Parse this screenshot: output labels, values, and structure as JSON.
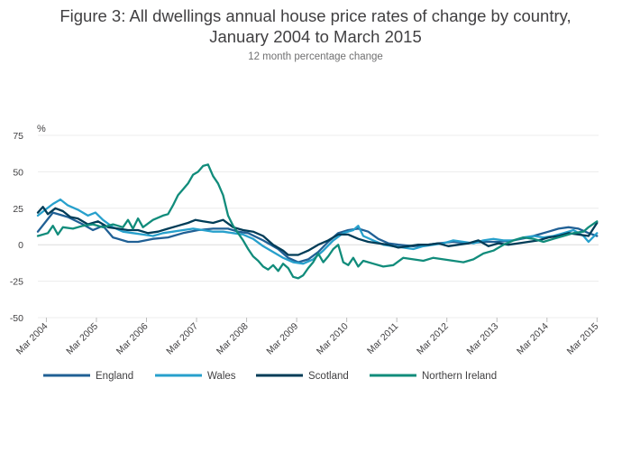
{
  "chart_data": {
    "type": "line",
    "title_line1": "Figure 3: All dwellings annual house price rates of change by country,",
    "title_line2": "January 2004 to March 2015",
    "subtitle": "12 month percentage change",
    "ylabel": "%",
    "ylim": [
      -50,
      75
    ],
    "yticks": [
      75,
      50,
      25,
      0,
      -25,
      -50
    ],
    "xlim": [
      2004.0,
      2015.2
    ],
    "xticks": [
      {
        "x": 2004.17,
        "label": "Mar 2004"
      },
      {
        "x": 2005.17,
        "label": "Mar 2005"
      },
      {
        "x": 2006.17,
        "label": "Mar 2006"
      },
      {
        "x": 2007.17,
        "label": "Mar 2007"
      },
      {
        "x": 2008.17,
        "label": "Mar 2008"
      },
      {
        "x": 2009.17,
        "label": "Mar 2009"
      },
      {
        "x": 2010.17,
        "label": "Mar 2010"
      },
      {
        "x": 2011.17,
        "label": "Mar 2011"
      },
      {
        "x": 2012.17,
        "label": "Mar 2012"
      },
      {
        "x": 2013.17,
        "label": "Mar 2013"
      },
      {
        "x": 2014.17,
        "label": "Mar 2014"
      },
      {
        "x": 2015.17,
        "label": "Mar 2015"
      }
    ],
    "grid": "horizontal",
    "legend_position": "bottom",
    "series": [
      {
        "name": "England",
        "color": "#206095",
        "points": [
          [
            2004.0,
            9
          ],
          [
            2004.3,
            22
          ],
          [
            2004.6,
            19
          ],
          [
            2004.9,
            14
          ],
          [
            2005.1,
            10
          ],
          [
            2005.3,
            13
          ],
          [
            2005.5,
            5
          ],
          [
            2005.8,
            2
          ],
          [
            2006.0,
            2
          ],
          [
            2006.3,
            4
          ],
          [
            2006.6,
            5
          ],
          [
            2006.9,
            8
          ],
          [
            2007.2,
            10
          ],
          [
            2007.5,
            11
          ],
          [
            2007.8,
            11
          ],
          [
            2008.0,
            9
          ],
          [
            2008.2,
            8
          ],
          [
            2008.5,
            3
          ],
          [
            2008.8,
            -3
          ],
          [
            2009.0,
            -9
          ],
          [
            2009.2,
            -12
          ],
          [
            2009.4,
            -10
          ],
          [
            2009.6,
            -5
          ],
          [
            2009.8,
            2
          ],
          [
            2010.0,
            8
          ],
          [
            2010.2,
            10
          ],
          [
            2010.4,
            11
          ],
          [
            2010.6,
            9
          ],
          [
            2010.8,
            4
          ],
          [
            2011.0,
            1
          ],
          [
            2011.2,
            0
          ],
          [
            2011.5,
            -1
          ],
          [
            2011.8,
            0
          ],
          [
            2012.0,
            1
          ],
          [
            2012.3,
            2
          ],
          [
            2012.6,
            1
          ],
          [
            2012.9,
            2
          ],
          [
            2013.2,
            2
          ],
          [
            2013.5,
            3
          ],
          [
            2013.8,
            5
          ],
          [
            2014.0,
            7
          ],
          [
            2014.2,
            9
          ],
          [
            2014.4,
            11
          ],
          [
            2014.6,
            12
          ],
          [
            2014.8,
            11
          ],
          [
            2015.0,
            8
          ],
          [
            2015.17,
            6
          ]
        ]
      },
      {
        "name": "Wales",
        "color": "#27a0cc",
        "points": [
          [
            2004.0,
            20
          ],
          [
            2004.15,
            24
          ],
          [
            2004.3,
            28
          ],
          [
            2004.45,
            31
          ],
          [
            2004.6,
            27
          ],
          [
            2004.8,
            24
          ],
          [
            2005.0,
            20
          ],
          [
            2005.15,
            22
          ],
          [
            2005.3,
            17
          ],
          [
            2005.5,
            12
          ],
          [
            2005.7,
            9
          ],
          [
            2005.9,
            8
          ],
          [
            2006.1,
            7
          ],
          [
            2006.3,
            6
          ],
          [
            2006.5,
            8
          ],
          [
            2006.7,
            9
          ],
          [
            2006.9,
            10
          ],
          [
            2007.1,
            11
          ],
          [
            2007.3,
            10
          ],
          [
            2007.5,
            9
          ],
          [
            2007.7,
            9
          ],
          [
            2007.9,
            8
          ],
          [
            2008.1,
            7
          ],
          [
            2008.3,
            4
          ],
          [
            2008.5,
            -1
          ],
          [
            2008.7,
            -5
          ],
          [
            2008.9,
            -9
          ],
          [
            2009.1,
            -12
          ],
          [
            2009.3,
            -13
          ],
          [
            2009.5,
            -10
          ],
          [
            2009.7,
            -4
          ],
          [
            2009.9,
            3
          ],
          [
            2010.1,
            8
          ],
          [
            2010.3,
            10
          ],
          [
            2010.4,
            13
          ],
          [
            2010.5,
            6
          ],
          [
            2010.7,
            3
          ],
          [
            2010.9,
            0
          ],
          [
            2011.1,
            -1
          ],
          [
            2011.3,
            -2
          ],
          [
            2011.5,
            -3
          ],
          [
            2011.7,
            -1
          ],
          [
            2011.9,
            0
          ],
          [
            2012.1,
            1
          ],
          [
            2012.3,
            3
          ],
          [
            2012.5,
            2
          ],
          [
            2012.7,
            1
          ],
          [
            2012.9,
            3
          ],
          [
            2013.1,
            4
          ],
          [
            2013.3,
            3
          ],
          [
            2013.5,
            3
          ],
          [
            2013.7,
            5
          ],
          [
            2013.9,
            6
          ],
          [
            2014.1,
            5
          ],
          [
            2014.3,
            6
          ],
          [
            2014.5,
            8
          ],
          [
            2014.7,
            10
          ],
          [
            2014.9,
            6
          ],
          [
            2015.0,
            2
          ],
          [
            2015.17,
            8
          ]
        ]
      },
      {
        "name": "Scotland",
        "color": "#003c57",
        "points": [
          [
            2004.0,
            22
          ],
          [
            2004.1,
            26
          ],
          [
            2004.2,
            21
          ],
          [
            2004.35,
            25
          ],
          [
            2004.5,
            23
          ],
          [
            2004.65,
            19
          ],
          [
            2004.8,
            18
          ],
          [
            2005.0,
            14
          ],
          [
            2005.2,
            16
          ],
          [
            2005.4,
            12
          ],
          [
            2005.6,
            11
          ],
          [
            2005.8,
            10
          ],
          [
            2006.0,
            10
          ],
          [
            2006.2,
            8
          ],
          [
            2006.4,
            9
          ],
          [
            2006.6,
            11
          ],
          [
            2006.8,
            13
          ],
          [
            2007.0,
            15
          ],
          [
            2007.15,
            17
          ],
          [
            2007.3,
            16
          ],
          [
            2007.5,
            15
          ],
          [
            2007.7,
            17
          ],
          [
            2007.9,
            12
          ],
          [
            2008.1,
            10
          ],
          [
            2008.3,
            9
          ],
          [
            2008.5,
            6
          ],
          [
            2008.7,
            0
          ],
          [
            2008.9,
            -4
          ],
          [
            2009.0,
            -7
          ],
          [
            2009.2,
            -7
          ],
          [
            2009.4,
            -4
          ],
          [
            2009.6,
            0
          ],
          [
            2009.8,
            3
          ],
          [
            2010.0,
            7
          ],
          [
            2010.2,
            7
          ],
          [
            2010.4,
            4
          ],
          [
            2010.6,
            2
          ],
          [
            2010.8,
            1
          ],
          [
            2011.0,
            0
          ],
          [
            2011.2,
            -2
          ],
          [
            2011.4,
            -1
          ],
          [
            2011.6,
            0
          ],
          [
            2011.8,
            0
          ],
          [
            2012.0,
            1
          ],
          [
            2012.2,
            -1
          ],
          [
            2012.4,
            0
          ],
          [
            2012.6,
            1
          ],
          [
            2012.8,
            3
          ],
          [
            2013.0,
            -1
          ],
          [
            2013.2,
            1
          ],
          [
            2013.4,
            0
          ],
          [
            2013.6,
            1
          ],
          [
            2013.8,
            2
          ],
          [
            2014.0,
            3
          ],
          [
            2014.2,
            5
          ],
          [
            2014.4,
            6
          ],
          [
            2014.6,
            8
          ],
          [
            2014.8,
            7
          ],
          [
            2015.0,
            6
          ],
          [
            2015.17,
            15
          ]
        ]
      },
      {
        "name": "Northern Ireland",
        "color": "#118c7b",
        "points": [
          [
            2004.0,
            6
          ],
          [
            2004.2,
            8
          ],
          [
            2004.3,
            13
          ],
          [
            2004.4,
            7
          ],
          [
            2004.5,
            12
          ],
          [
            2004.7,
            11
          ],
          [
            2004.9,
            13
          ],
          [
            2005.1,
            14
          ],
          [
            2005.3,
            12
          ],
          [
            2005.5,
            14
          ],
          [
            2005.7,
            12
          ],
          [
            2005.8,
            17
          ],
          [
            2005.9,
            11
          ],
          [
            2006.0,
            18
          ],
          [
            2006.1,
            12
          ],
          [
            2006.3,
            17
          ],
          [
            2006.5,
            20
          ],
          [
            2006.6,
            21
          ],
          [
            2006.7,
            27
          ],
          [
            2006.8,
            34
          ],
          [
            2006.9,
            38
          ],
          [
            2007.0,
            42
          ],
          [
            2007.1,
            48
          ],
          [
            2007.2,
            50
          ],
          [
            2007.3,
            54
          ],
          [
            2007.4,
            55
          ],
          [
            2007.5,
            47
          ],
          [
            2007.6,
            42
          ],
          [
            2007.7,
            34
          ],
          [
            2007.8,
            20
          ],
          [
            2007.9,
            13
          ],
          [
            2008.0,
            8
          ],
          [
            2008.1,
            3
          ],
          [
            2008.2,
            -3
          ],
          [
            2008.3,
            -8
          ],
          [
            2008.4,
            -11
          ],
          [
            2008.5,
            -15
          ],
          [
            2008.6,
            -17
          ],
          [
            2008.7,
            -14
          ],
          [
            2008.8,
            -18
          ],
          [
            2008.9,
            -13
          ],
          [
            2009.0,
            -16
          ],
          [
            2009.1,
            -22
          ],
          [
            2009.2,
            -23
          ],
          [
            2009.3,
            -21
          ],
          [
            2009.4,
            -16
          ],
          [
            2009.5,
            -12
          ],
          [
            2009.6,
            -6
          ],
          [
            2009.7,
            -12
          ],
          [
            2009.8,
            -8
          ],
          [
            2009.9,
            -3
          ],
          [
            2010.0,
            0
          ],
          [
            2010.1,
            -12
          ],
          [
            2010.2,
            -14
          ],
          [
            2010.3,
            -9
          ],
          [
            2010.4,
            -15
          ],
          [
            2010.5,
            -11
          ],
          [
            2010.7,
            -13
          ],
          [
            2010.9,
            -15
          ],
          [
            2011.1,
            -14
          ],
          [
            2011.3,
            -9
          ],
          [
            2011.5,
            -10
          ],
          [
            2011.7,
            -11
          ],
          [
            2011.9,
            -9
          ],
          [
            2012.1,
            -10
          ],
          [
            2012.3,
            -11
          ],
          [
            2012.5,
            -12
          ],
          [
            2012.7,
            -10
          ],
          [
            2012.9,
            -6
          ],
          [
            2013.1,
            -4
          ],
          [
            2013.3,
            0
          ],
          [
            2013.5,
            3
          ],
          [
            2013.7,
            5
          ],
          [
            2013.9,
            4
          ],
          [
            2014.1,
            2
          ],
          [
            2014.3,
            4
          ],
          [
            2014.5,
            6
          ],
          [
            2014.7,
            8
          ],
          [
            2014.9,
            9
          ],
          [
            2015.0,
            12
          ],
          [
            2015.17,
            16
          ]
        ]
      }
    ]
  }
}
